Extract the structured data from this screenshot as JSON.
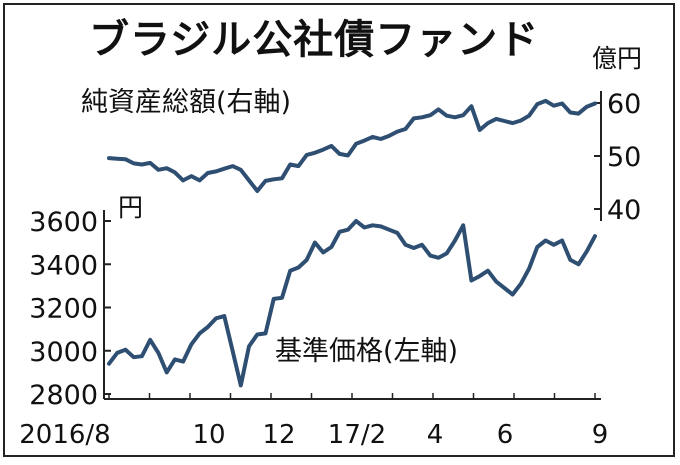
{
  "chart_data": {
    "type": "line",
    "title": "ブラジル公社債ファンド",
    "x_ticks": [
      "2016/8",
      "10",
      "12",
      "17/2",
      "4",
      "6",
      "9"
    ],
    "colors": {
      "series": "#2e4e72",
      "text": "#111111",
      "axis": "#222222"
    },
    "grid": false,
    "series": [
      {
        "name": "純資産総額(右軸)",
        "axis": "right",
        "unit": "億円",
        "ylim": [
          40,
          60
        ],
        "ticks": [
          40,
          50,
          60
        ],
        "values": [
          49.6,
          49.5,
          49.4,
          48.6,
          48.4,
          48.7,
          47.4,
          47.7,
          46.9,
          45.4,
          46.2,
          45.4,
          46.8,
          47.1,
          47.6,
          48.1,
          47.4,
          45.4,
          43.4,
          45.3,
          45.6,
          45.8,
          48.4,
          48.1,
          50.2,
          50.6,
          51.2,
          51.9,
          50.4,
          50.1,
          52.3,
          52.9,
          53.6,
          53.2,
          53.8,
          54.6,
          55.1,
          57.1,
          57.3,
          57.7,
          58.8,
          57.6,
          57.3,
          57.7,
          59.4,
          54.9,
          56.2,
          57.0,
          56.6,
          56.2,
          56.7,
          57.6,
          59.8,
          60.4,
          59.5,
          59.9,
          58.2,
          58.0,
          59.3,
          59.9
        ]
      },
      {
        "name": "基準価格(左軸)",
        "axis": "left",
        "unit": "円",
        "ylim": [
          2800,
          3600
        ],
        "ticks": [
          2800,
          3000,
          3200,
          3400,
          3600
        ],
        "values": [
          2940,
          2990,
          3005,
          2970,
          2975,
          3050,
          2990,
          2900,
          2960,
          2950,
          3030,
          3080,
          3110,
          3150,
          3160,
          3000,
          2840,
          3020,
          3075,
          3080,
          3240,
          3245,
          3370,
          3385,
          3420,
          3500,
          3455,
          3480,
          3550,
          3560,
          3600,
          3570,
          3580,
          3575,
          3560,
          3545,
          3490,
          3475,
          3490,
          3440,
          3430,
          3450,
          3510,
          3580,
          3325,
          3345,
          3370,
          3320,
          3290,
          3260,
          3310,
          3380,
          3480,
          3510,
          3490,
          3510,
          3420,
          3400,
          3460,
          3530
        ]
      }
    ]
  }
}
